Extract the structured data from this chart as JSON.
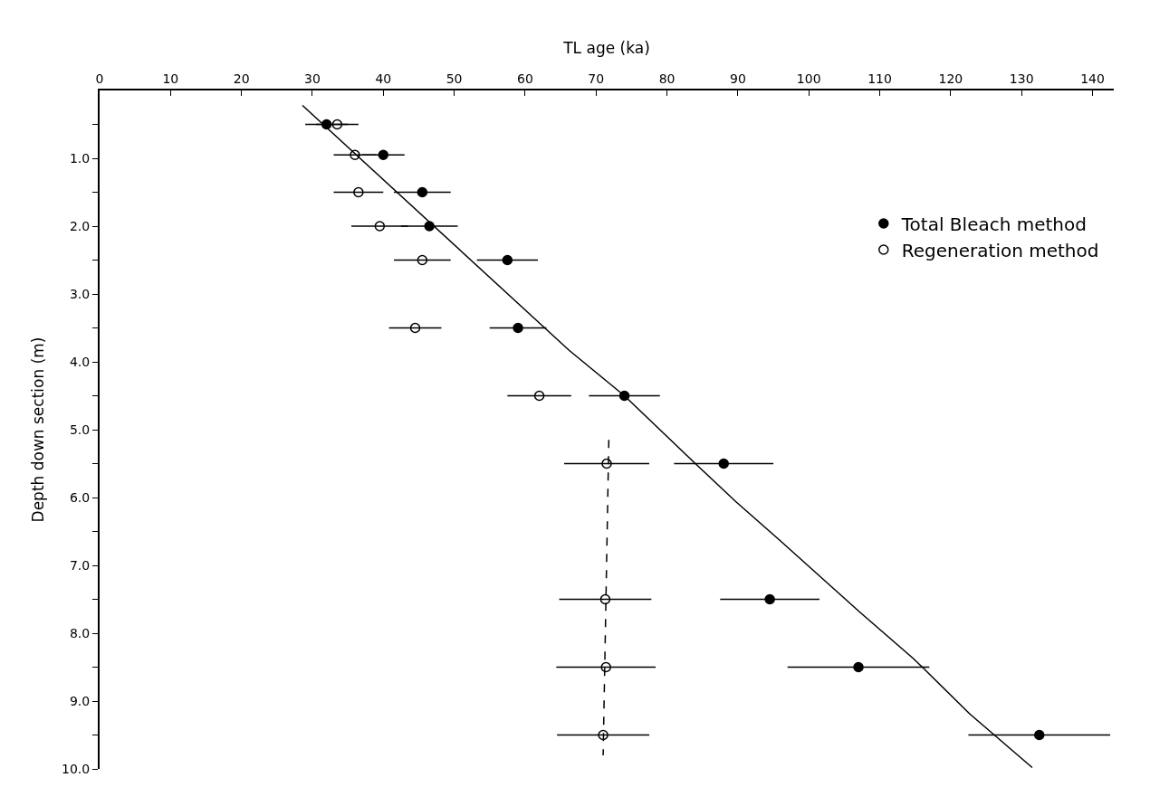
{
  "chart_data": {
    "type": "scatter",
    "xlabel": "TL age (ka)",
    "ylabel": "Depth down section (m)",
    "xlim": [
      0,
      143
    ],
    "xticks": [
      0,
      10,
      20,
      30,
      40,
      50,
      60,
      70,
      80,
      90,
      100,
      110,
      120,
      130,
      140
    ],
    "ylim": [
      10,
      0
    ],
    "yticks": [
      {
        "value": 0.5,
        "label": null
      },
      {
        "value": 1,
        "label": "1.0"
      },
      {
        "value": 1.5,
        "label": null
      },
      {
        "value": 2,
        "label": "2.0"
      },
      {
        "value": 2.5,
        "label": null
      },
      {
        "value": 3,
        "label": "3.0"
      },
      {
        "value": 3.5,
        "label": null
      },
      {
        "value": 4,
        "label": "4.0"
      },
      {
        "value": 4.5,
        "label": null
      },
      {
        "value": 5,
        "label": "5.0"
      },
      {
        "value": 5.5,
        "label": null
      },
      {
        "value": 6,
        "label": "6.0"
      },
      {
        "value": 6.5,
        "label": null
      },
      {
        "value": 7,
        "label": "7.0"
      },
      {
        "value": 7.5,
        "label": null
      },
      {
        "value": 8,
        "label": "8.0"
      },
      {
        "value": 8.5,
        "label": null
      },
      {
        "value": 9,
        "label": "9.0"
      },
      {
        "value": 9.5,
        "label": null
      },
      {
        "value": 10,
        "label": "10.0"
      }
    ],
    "legend": "top right",
    "orientation": "horizontal",
    "series": [
      {
        "name": "Total Bleach method",
        "color": "#000000",
        "marker": "circle",
        "values": [
          32,
          40,
          45.5,
          46.5,
          57.5,
          59,
          74,
          88,
          94.5,
          107,
          132.5
        ],
        "x": [
          0.5,
          0.95,
          1.5,
          2.0,
          2.5,
          3.5,
          4.5,
          5.5,
          7.5,
          8.5,
          9.5
        ],
        "errors": [
          3,
          3,
          4,
          4,
          4.3,
          4,
          5,
          7,
          7,
          10,
          10
        ]
      },
      {
        "name": "Regeneration method",
        "color": "#000000",
        "marker": "circle-open",
        "values": [
          33.5,
          36,
          36.5,
          39.5,
          45.5,
          44.5,
          62,
          71.5,
          71.3,
          71.4,
          71
        ],
        "x": [
          0.5,
          0.95,
          1.5,
          2.0,
          2.5,
          3.5,
          4.5,
          5.5,
          7.5,
          8.5,
          9.5
        ],
        "errors": [
          3,
          3,
          3.5,
          4,
          4,
          3.7,
          4.5,
          6,
          6.5,
          7,
          6.5
        ]
      },
      {
        "type": "line",
        "color": "#000000",
        "line_style": "solid",
        "values": [
          28.6,
          66.2,
          74,
          83.8,
          89.7,
          95.9,
          107.2,
          114.7,
          116,
          122.7,
          131.5
        ],
        "x": [
          0.22,
          3.83,
          4.5,
          5.48,
          6.06,
          6.63,
          7.69,
          8.37,
          8.5,
          9.19,
          9.98
        ]
      },
      {
        "type": "line",
        "color": "#000000",
        "line_style": "dashed",
        "values": [
          71.8,
          71
        ],
        "x": [
          5.15,
          9.8
        ]
      }
    ]
  }
}
